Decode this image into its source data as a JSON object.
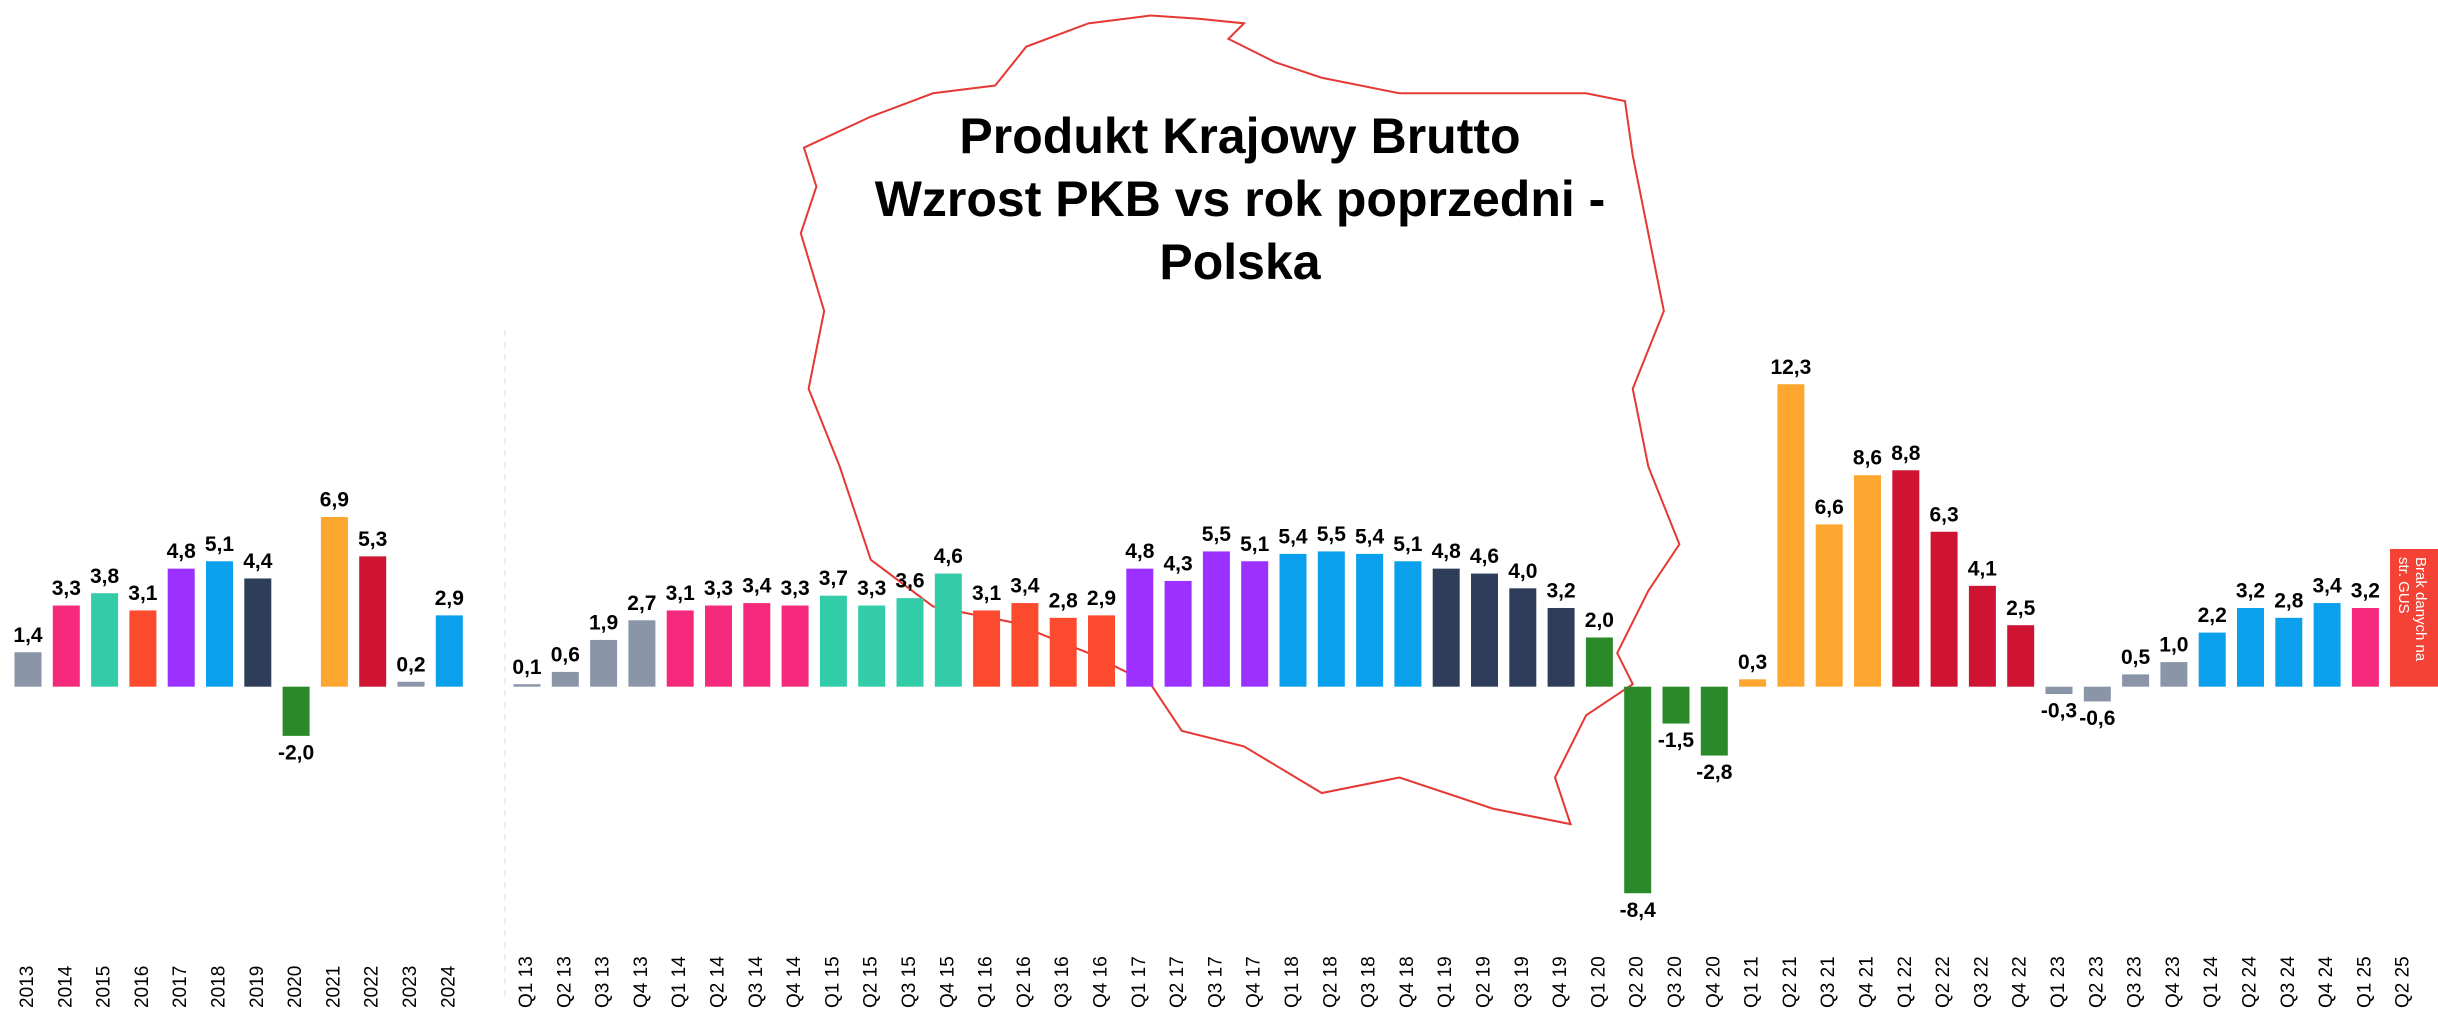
{
  "chart_data": [
    {
      "type": "bar",
      "title": [
        "Produkt Krajowy Brutto",
        "Wzrost PKB vs rok poprzedni -",
        "Polska"
      ],
      "categories": [
        "2013",
        "2014",
        "2015",
        "2016",
        "2017",
        "2018",
        "2019",
        "2020",
        "2021",
        "2022",
        "2023",
        "2024"
      ],
      "values": [
        1.4,
        3.3,
        3.8,
        3.1,
        4.8,
        5.1,
        4.4,
        -2.0,
        6.9,
        5.3,
        0.2,
        2.9
      ],
      "value_labels": [
        "1,4",
        "3,3",
        "3,8",
        "3,1",
        "4,8",
        "5,1",
        "4,4",
        "-2,0",
        "6,9",
        "5,3",
        "0,2",
        "2,9"
      ],
      "colors": [
        "#8a96a8",
        "#f52a7d",
        "#33cca8",
        "#fc4a2e",
        "#9b30ff",
        "#0aa0ec",
        "#2e3d5a",
        "#2a8a2a",
        "#fda630",
        "#cf1433",
        "#8a96a8",
        "#0aa0ec"
      ],
      "ylim": [
        -9,
        13
      ]
    },
    {
      "type": "bar",
      "categories": [
        "Q1 13",
        "Q2 13",
        "Q3 13",
        "Q4 13",
        "Q1 14",
        "Q2 14",
        "Q3 14",
        "Q4 14",
        "Q1 15",
        "Q2 15",
        "Q3 15",
        "Q4 15",
        "Q1 16",
        "Q2 16",
        "Q3 16",
        "Q4 16",
        "Q1 17",
        "Q2 17",
        "Q3 17",
        "Q4 17",
        "Q1 18",
        "Q2 18",
        "Q3 18",
        "Q4 18",
        "Q1 19",
        "Q2 19",
        "Q3 19",
        "Q4 19",
        "Q1 20",
        "Q2 20",
        "Q3 20",
        "Q4 20",
        "Q1 21",
        "Q2 21",
        "Q3 21",
        "Q4 21",
        "Q1 22",
        "Q2 22",
        "Q3 22",
        "Q4 22",
        "Q1 23",
        "Q2 23",
        "Q3 23",
        "Q4 23",
        "Q1 24",
        "Q2 24",
        "Q3 24",
        "Q4 24",
        "Q1 25",
        "Q2 25"
      ],
      "values": [
        0.1,
        0.6,
        1.9,
        2.7,
        3.1,
        3.3,
        3.4,
        3.3,
        3.7,
        3.3,
        3.6,
        4.6,
        3.1,
        3.4,
        2.8,
        2.9,
        4.8,
        4.3,
        5.5,
        5.1,
        5.4,
        5.5,
        5.4,
        5.1,
        4.8,
        4.6,
        4.0,
        3.2,
        2.0,
        -8.4,
        -1.5,
        -2.8,
        0.3,
        12.3,
        6.6,
        8.6,
        8.8,
        6.3,
        4.1,
        2.5,
        -0.3,
        -0.6,
        0.5,
        1.0,
        2.2,
        3.2,
        2.8,
        3.4,
        3.2,
        null
      ],
      "value_labels": [
        "0,1",
        "0,6",
        "1,9",
        "2,7",
        "3,1",
        "3,3",
        "3,4",
        "3,3",
        "3,7",
        "3,3",
        "3,6",
        "4,6",
        "3,1",
        "3,4",
        "2,8",
        "2,9",
        "4,8",
        "4,3",
        "5,5",
        "5,1",
        "5,4",
        "5,5",
        "5,4",
        "5,1",
        "4,8",
        "4,6",
        "4,0",
        "3,2",
        "2,0",
        "-8,4",
        "-1,5",
        "-2,8",
        "0,3",
        "12,3",
        "6,6",
        "8,6",
        "8,8",
        "6,3",
        "4,1",
        "2,5",
        "-0,3",
        "-0,6",
        "0,5",
        "1,0",
        "2,2",
        "3,2",
        "2,8",
        "3,4",
        "3,2",
        null
      ],
      "colors": [
        "#8a96a8",
        "#8a96a8",
        "#8a96a8",
        "#8a96a8",
        "#f52a7d",
        "#f52a7d",
        "#f52a7d",
        "#f52a7d",
        "#33cca8",
        "#33cca8",
        "#33cca8",
        "#33cca8",
        "#fc4a2e",
        "#fc4a2e",
        "#fc4a2e",
        "#fc4a2e",
        "#9b30ff",
        "#9b30ff",
        "#9b30ff",
        "#9b30ff",
        "#0aa0ec",
        "#0aa0ec",
        "#0aa0ec",
        "#0aa0ec",
        "#2e3d5a",
        "#2e3d5a",
        "#2e3d5a",
        "#2e3d5a",
        "#2a8a2a",
        "#2a8a2a",
        "#2a8a2a",
        "#2a8a2a",
        "#fda630",
        "#fda630",
        "#fda630",
        "#fda630",
        "#cf1433",
        "#cf1433",
        "#cf1433",
        "#cf1433",
        "#8a96a8",
        "#8a96a8",
        "#8a96a8",
        "#8a96a8",
        "#0aa0ec",
        "#0aa0ec",
        "#0aa0ec",
        "#0aa0ec",
        "#f52a7d",
        null
      ],
      "annotation": [
        "Brak danych na",
        "str. GUS"
      ],
      "annotation_color": "#f44336",
      "ylim": [
        -9,
        13
      ]
    }
  ]
}
